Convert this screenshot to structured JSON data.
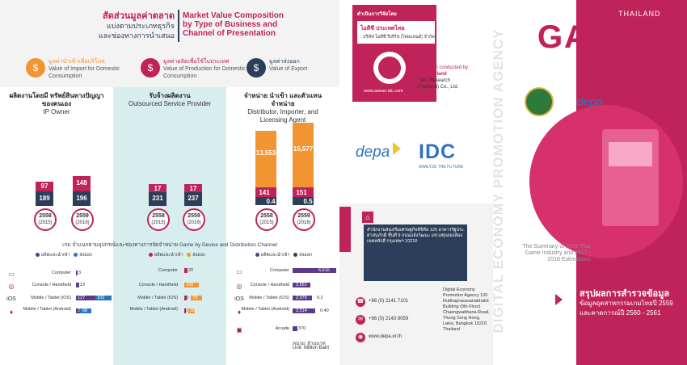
{
  "colors": {
    "magenta": "#c0235a",
    "orange": "#f39432",
    "navy": "#2d3e5a",
    "purple": "#5b3a8c",
    "blue": "#2f74c0",
    "teal": "#7ec8c8"
  },
  "p1": {
    "title_th_a": "สัดส่วนมูลค่าตลาด",
    "title_th_b": "แบ่งตามประเภทธุรกิจ",
    "title_th_c": "และช่องทางการนำเสนอ",
    "title_en": "Market Value Composition by Type of Business and Channel of Presentation",
    "legend": [
      {
        "th": "มูลค่านำเข้าเพื่อบริโภค",
        "en": "Value of Import for Domestic Consumption"
      },
      {
        "th": "มูลค่าผลิตเพื่อใช้ในประเทศ",
        "en": "Value of Production for Domestic Consumption"
      },
      {
        "th": "มูลค่าส่งออก",
        "en": "Value of Export"
      }
    ],
    "cols": [
      {
        "th": "ผลิตงานโดยมี ทรัพย์สินทางปัญญาของตนเอง",
        "en": "IP Owner",
        "bars": [
          {
            "top": "97",
            "bot": "189"
          },
          {
            "top": "148",
            "bot": "196"
          }
        ]
      },
      {
        "th": "รับจ้างผลิตงาน",
        "en": "Outsourced Service Provider",
        "bars": [
          {
            "top": "17",
            "bot": "231"
          },
          {
            "top": "17",
            "bot": "237"
          }
        ]
      },
      {
        "th": "จำหน่าย นำเข้า และตัวแทนจำหน่าย",
        "en": "Distributor, Importer, and Licensing Agent",
        "bars": [
          {
            "top": "13,553",
            "mid": "141",
            "bot": "0.4"
          },
          {
            "top": "15,577",
            "mid": "151",
            "bot": "0.5"
          }
        ]
      }
    ],
    "years": [
      {
        "th": "2558",
        "en": "(2015)"
      },
      {
        "th": "2559",
        "en": "(2016)"
      }
    ],
    "device_title": "เกม จำแนกตามอุปกรณ์และช่องทางการจัดจำหน่าย  Game by Device and Distribution Channel",
    "leg_import": "ผลิตและนำเข้า",
    "leg_export": "ส่งออก",
    "rows": [
      "Computer",
      "Console / Handheld",
      "Mobile / Tablet (iOS)",
      "Mobile / Tablet (Android)",
      "Arcade"
    ],
    "ios_icon": "iOS",
    "c1": [
      {
        "a": "3"
      },
      {
        "a": "23"
      },
      {
        "a": "127",
        "b": "102"
      },
      {
        "a": "21",
        "b": "68"
      }
    ],
    "c2": [
      {
        "a": "20"
      },
      {
        "a": "100"
      },
      {
        "a": "8",
        "b": "79"
      },
      {
        "a": "5",
        "b": "39"
      }
    ],
    "c3": [
      {
        "a": "6,616"
      },
      {
        "a": "2,651"
      },
      {
        "a": "2,976",
        "b": "0.2"
      },
      {
        "a": "3,514",
        "b": "0.40"
      },
      {
        "a": "370"
      }
    ],
    "unit_th": "หน่วย: ล้านบาท",
    "unit_en": "Unit: Million Baht"
  },
  "p2": {
    "hdr": "ดำเนินการวิจัยโดย",
    "idc_th": "ไอดีซี ประเทศไทย",
    "idc_th2": ": บริษัท ไอดีซี รีเสิร์ช (ไทยแลนด์) จำกัด",
    "research_a": "Research conducted by",
    "research_b": "IDC Thailand",
    "research_c": ": IDC Research",
    "research_d": "(Thailand) Co., Ltd.",
    "idc_web": "www.asean.idc.com",
    "depa": "depa",
    "idc": "IDC",
    "idc_tag": "ANALYZE THE FUTURE",
    "vert": "DIGITAL ECONOMY PROMOTION AGENCY",
    "addr_th": "สำนักงานส่งเสริมเศรษฐกิจดิจิทัล 120 อาคารรัฐประศาสนภักดี ชั้นที่ 9 ถนนแจ้งวัฒนะ แขวงทุ่งสองห้อง เขตหลักสี่ กรุงเทพฯ 10210",
    "addr_en": "Digital Economy Promotion Agency 120 Rutthaprasasanabhakti Building (9th Floor) Chaengwatthana Road, Thung Song Hong, Laksi, Bangkok 10210 Thailand",
    "tel": "+66 (0) 2141 7101",
    "fax": "+66 (0) 2143 8059",
    "web": "www.depa.or.th"
  },
  "p3": {
    "thailand": "THAILAND",
    "game": "GAME",
    "depa": "depa",
    "summary": "The Summary of 2016 Thai Game Industry and 2017 - 2018 Estimations",
    "th1": "สรุปผลการสำรวจข้อมูล",
    "th2": "ข้อมูลอุตสาหกรรมเกมไทยปี 2559",
    "th3": "และคาดการณ์ปี 2560 - 2561"
  }
}
